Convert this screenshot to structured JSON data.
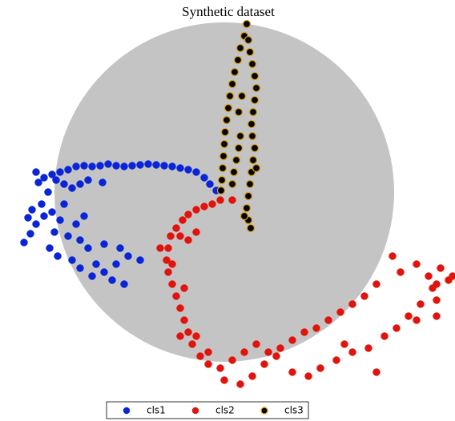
{
  "chart_data": {
    "type": "scatter",
    "title": "Synthetic dataset",
    "xlim": [
      -28,
      28.8
    ],
    "ylim": [
      -28.6,
      24
    ],
    "legend": "bottom",
    "series": [
      {
        "name": "cls1",
        "color": "#0a24d8",
        "x": [
          -1,
          -1.8,
          -2.5,
          -3.5,
          -4.5,
          -5.5,
          -6.5,
          -7.5,
          -8.5,
          -9.5,
          -10.5,
          -11.5,
          -12.5,
          -13.5,
          -14.5,
          -15.5,
          -16.5,
          -17.5,
          -18.5,
          -19.5,
          -20.5,
          -21.5,
          -22.5,
          -23.2,
          -23.5,
          -21,
          -20,
          -19,
          -18,
          -17,
          -15.2,
          -22,
          -22.8,
          -24,
          -24.5,
          -23.5,
          -24.2,
          -25,
          -22.5,
          -21.5,
          -20.5,
          -21.2,
          -21.8,
          -20.8,
          -19.5,
          -18.5,
          -18,
          -17,
          -16,
          -18,
          -16.5,
          -15,
          -14,
          -12.5,
          -13.5,
          -12,
          -10.5,
          -13,
          -15,
          -19,
          -17.5,
          -20
        ],
        "y": [
          0.2,
          1,
          1.8,
          2.5,
          2.8,
          3,
          3.2,
          3.3,
          3.4,
          3.5,
          3.4,
          3.3,
          3.2,
          3.3,
          3.5,
          3.3,
          3.2,
          3.3,
          3.2,
          2.8,
          2.5,
          2.2,
          1.8,
          1.2,
          2.5,
          1.5,
          1,
          0.5,
          1,
          1.5,
          1.2,
          0,
          -1.5,
          -2.2,
          -3.2,
          -4,
          -5.2,
          -6.3,
          -3,
          -2.5,
          -3.5,
          -5,
          -7,
          -8,
          -5.5,
          -4,
          -6,
          -7,
          -9,
          -9.5,
          -10.5,
          -10,
          -11,
          -11.5,
          -9,
          -8,
          -8.5,
          -7,
          -6.5,
          -8.5,
          -3,
          -1.5
        ]
      },
      {
        "name": "cls2",
        "color": "#e0140c",
        "x": [
          -0.5,
          -1.5,
          -2.5,
          -3.5,
          -4.5,
          -5.2,
          -6,
          -6.7,
          -7,
          -7.2,
          -7,
          -6.5,
          -6,
          -5.5,
          -5,
          -4.5,
          -4,
          -3,
          -2,
          -0.5,
          1,
          2.5,
          4,
          5.5,
          7,
          8.5,
          10,
          11.5,
          13,
          14.5,
          16,
          17.5,
          19,
          21,
          22,
          24,
          25.5,
          27,
          28,
          26.5,
          24.5,
          23,
          21.5,
          20,
          18,
          16,
          14,
          12,
          10.5,
          8.5,
          6.5,
          5,
          3.5,
          2,
          0,
          -2,
          -3.5,
          -5.5,
          -5,
          -6.5,
          -8,
          -4.5,
          -3.5,
          -5.5,
          1,
          15,
          19,
          24,
          26.5,
          28.5,
          26.5,
          26
        ],
        "y": [
          -1,
          -1.5,
          -1.8,
          -2.2,
          -2.8,
          -3.5,
          -4.5,
          -5.5,
          -7,
          -8.5,
          -10,
          -11.5,
          -13,
          -14.5,
          -16,
          -17.5,
          -19,
          -20.5,
          -21.5,
          -22,
          -21,
          -20,
          -19,
          -20,
          -19.5,
          -18.5,
          -17.5,
          -17,
          -16,
          -15,
          -14,
          -13,
          -11.5,
          -8,
          -10,
          -9,
          -10.5,
          -9.5,
          -11,
          -13.5,
          -14,
          -15.5,
          -17,
          -18,
          -19.5,
          -20,
          -21,
          -22,
          -23,
          -22.5,
          -20.5,
          -21.5,
          -23,
          -24,
          -23.5,
          -20,
          -18,
          -18,
          -12,
          -9,
          -7,
          -6,
          -5,
          -5.5,
          -1,
          -19,
          -22.5,
          -16,
          -11.5,
          -10.5,
          -15.5,
          -12
        ]
      },
      {
        "name": "cls3",
        "color": "#000000",
        "edgecolor": "#d9a01c",
        "x": [
          2.8,
          2.5,
          2,
          1.7,
          1.3,
          1,
          0.7,
          0.5,
          0.3,
          0.1,
          0,
          -0.1,
          -0.2,
          -0.3,
          -0.4,
          1,
          1.2,
          1.5,
          1.8,
          2,
          3,
          3.2,
          3.5,
          3.8,
          4,
          3.8,
          3.6,
          3.4,
          3.5,
          3.8,
          3.6,
          3.4,
          3.2,
          3,
          2.8,
          3,
          3.3,
          2.5,
          4,
          2.2,
          1.8
        ],
        "y": [
          21,
          19.5,
          18,
          16.5,
          15,
          13.5,
          12,
          10.5,
          9,
          7.5,
          6,
          4.5,
          3,
          1.5,
          0.2,
          1,
          2.5,
          4,
          5.5,
          7,
          19,
          17.5,
          16,
          14.5,
          13,
          11.5,
          10,
          8.5,
          7,
          5.5,
          4,
          2.5,
          1,
          -0.5,
          -2,
          -3.5,
          -4.5,
          -3,
          3,
          12,
          10
        ]
      }
    ]
  }
}
